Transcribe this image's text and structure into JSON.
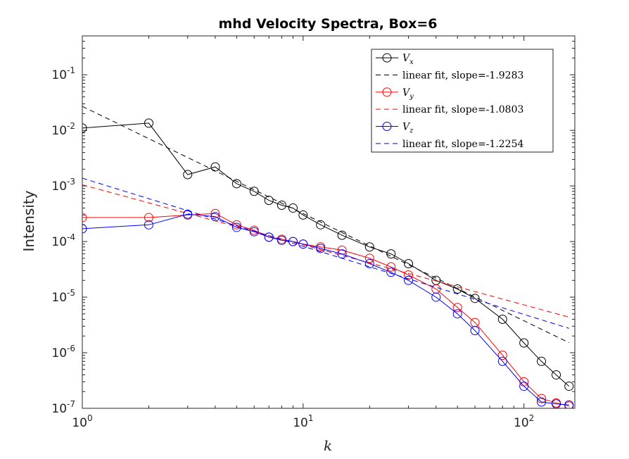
{
  "chart_data": {
    "type": "line",
    "title": "mhd Velocity Spectra, Box=6",
    "xlabel": "k",
    "ylabel": "Intensity",
    "xscale": "log",
    "yscale": "log",
    "xlim": [
      1,
      170
    ],
    "ylim": [
      1e-07,
      0.5
    ],
    "grid": false,
    "legend_position": "top-right",
    "x_ticks": [
      {
        "base": "10",
        "exp": "0",
        "value": 1
      },
      {
        "base": "10",
        "exp": "1",
        "value": 10
      },
      {
        "base": "10",
        "exp": "2",
        "value": 100
      }
    ],
    "y_ticks": [
      {
        "base": "10",
        "exp": "-7",
        "value": 1e-07
      },
      {
        "base": "10",
        "exp": "-6",
        "value": 1e-06
      },
      {
        "base": "10",
        "exp": "-5",
        "value": 1e-05
      },
      {
        "base": "10",
        "exp": "-4",
        "value": 0.0001
      },
      {
        "base": "10",
        "exp": "-3",
        "value": 0.001
      },
      {
        "base": "10",
        "exp": "-2",
        "value": 0.01
      },
      {
        "base": "10",
        "exp": "-1",
        "value": 0.1
      }
    ],
    "series": [
      {
        "name": "V_x",
        "name_main": "V",
        "name_sub": "x",
        "color": "#000000",
        "x": [
          1,
          2,
          3,
          4,
          5,
          6,
          7,
          8,
          9,
          10,
          12,
          15,
          20,
          25,
          30,
          40,
          50,
          60,
          80,
          100,
          120,
          140,
          160
        ],
        "y": [
          0.011,
          0.0135,
          0.0016,
          0.0022,
          0.0011,
          0.0008,
          0.00055,
          0.00045,
          0.0004,
          0.0003,
          0.0002,
          0.00013,
          8e-05,
          6e-05,
          4e-05,
          2e-05,
          1.4e-05,
          9.5e-06,
          4e-06,
          1.5e-06,
          7e-07,
          4e-07,
          2.5e-07
        ]
      },
      {
        "name": "linear fit, slope=-1.9283",
        "color": "#000000",
        "fit": true,
        "slope": -1.9283,
        "intercept_at_k1": 0.027
      },
      {
        "name": "V_y",
        "name_main": "V",
        "name_sub": "y",
        "color": "#ff0000",
        "x": [
          1,
          2,
          3,
          4,
          5,
          6,
          7,
          8,
          9,
          10,
          12,
          15,
          20,
          25,
          30,
          40,
          50,
          60,
          80,
          100,
          120,
          140,
          160
        ],
        "y": [
          0.00027,
          0.00027,
          0.0003,
          0.00032,
          0.0002,
          0.00016,
          0.00012,
          0.00011,
          0.0001,
          9e-05,
          8e-05,
          7e-05,
          5e-05,
          3.5e-05,
          2.5e-05,
          1.4e-05,
          6.5e-06,
          3.5e-06,
          9e-07,
          3e-07,
          1.5e-07,
          1.25e-07,
          1.1e-07
        ]
      },
      {
        "name": "linear fit, slope=-1.0803",
        "color": "#ff0000",
        "fit": true,
        "slope": -1.0803,
        "intercept_at_k1": 0.00105
      },
      {
        "name": "V_z",
        "name_main": "V",
        "name_sub": "z",
        "color": "#0000ff",
        "x": [
          1,
          2,
          3,
          4,
          5,
          6,
          7,
          8,
          9,
          10,
          12,
          15,
          20,
          25,
          30,
          40,
          50,
          60,
          80,
          100,
          120,
          140,
          160
        ],
        "y": [
          0.00017,
          0.0002,
          0.00031,
          0.00028,
          0.00018,
          0.00015,
          0.00012,
          0.000105,
          0.0001,
          9e-05,
          7.5e-05,
          6e-05,
          4e-05,
          2.8e-05,
          2e-05,
          1e-05,
          5e-06,
          2.5e-06,
          7e-07,
          2.5e-07,
          1.3e-07,
          1.2e-07,
          1.15e-07
        ]
      },
      {
        "name": "linear fit, slope=-1.2254",
        "color": "#0000ff",
        "fit": true,
        "slope": -1.2254,
        "intercept_at_k1": 0.00138
      }
    ]
  }
}
